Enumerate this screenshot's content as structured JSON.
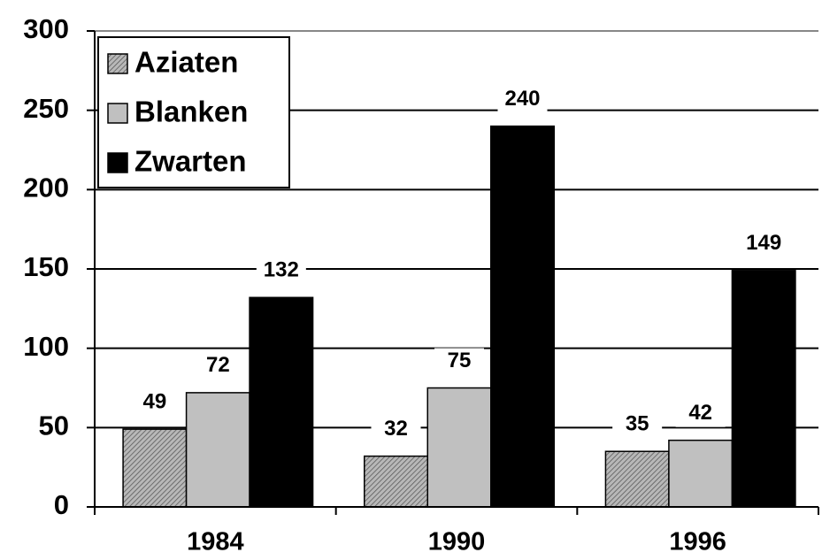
{
  "chart_data": {
    "type": "bar",
    "categories": [
      "1984",
      "1990",
      "1996"
    ],
    "series": [
      {
        "name": "Aziaten",
        "color": "#b8b8b8",
        "pattern": "hatch",
        "values": [
          49,
          32,
          35
        ]
      },
      {
        "name": "Blanken",
        "color": "#c0c0c0",
        "values": [
          72,
          75,
          42
        ]
      },
      {
        "name": "Zwarten",
        "color": "#000000",
        "values": [
          132,
          240,
          149
        ]
      }
    ],
    "ylim": [
      0,
      300
    ],
    "yticks": [
      0,
      50,
      100,
      150,
      200,
      250,
      300
    ],
    "grid": true,
    "legend": "top-left"
  }
}
